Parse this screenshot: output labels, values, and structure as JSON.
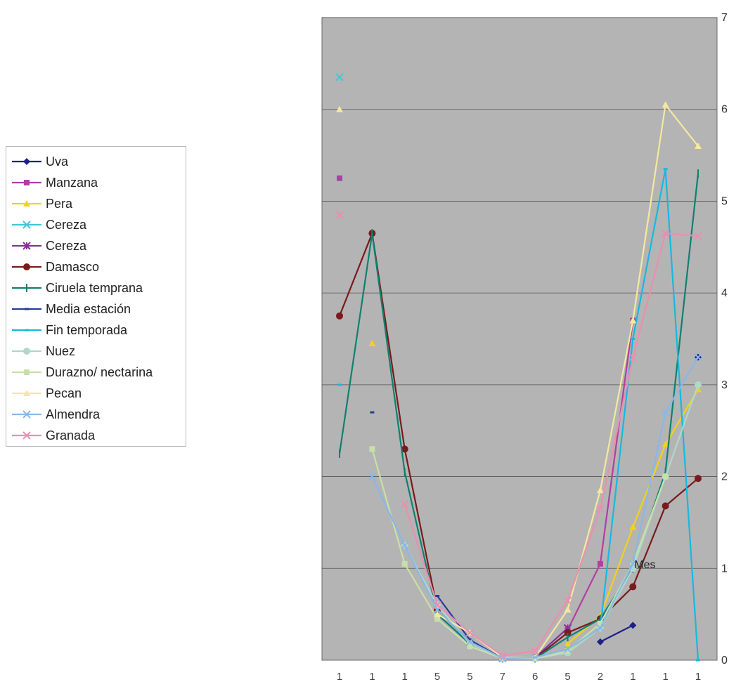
{
  "chart_data": {
    "type": "line",
    "title": "",
    "xlabel": "",
    "ylabel": "",
    "ylim": [
      0,
      7
    ],
    "y_ticks": [
      "0",
      "1",
      "2",
      "3",
      "4",
      "5",
      "6",
      "7"
    ],
    "x_ticks": [
      "1",
      "1",
      "1",
      "5",
      "5",
      "7",
      "6",
      "5",
      "2",
      "1",
      "1",
      "1"
    ],
    "grid": true,
    "plot_background": "#b4b4b4",
    "legend_position": "left",
    "annotations": [
      {
        "text": "Mes",
        "x": 9,
        "y": 1.05
      }
    ],
    "series": [
      {
        "name": "Uva",
        "color": "#1f1f8c",
        "marker": "diamond",
        "values": [
          null,
          null,
          null,
          null,
          null,
          null,
          null,
          null,
          0.2,
          0.38,
          null,
          3.3
        ]
      },
      {
        "name": "Manzana",
        "color": "#b040a0",
        "marker": "square",
        "values": [
          5.25,
          null,
          null,
          null,
          null,
          null,
          null,
          0.33,
          1.05,
          3.7,
          null,
          null
        ]
      },
      {
        "name": "Pera",
        "color": "#f2d21a",
        "marker": "triangle",
        "values": [
          null,
          3.45,
          null,
          null,
          null,
          null,
          null,
          0.18,
          0.48,
          1.45,
          2.35,
          2.95
        ]
      },
      {
        "name": "Cereza",
        "color": "#40c8d8",
        "marker": "x",
        "values": [
          6.35,
          null,
          null,
          null,
          null,
          null,
          null,
          null,
          null,
          null,
          null,
          null
        ]
      },
      {
        "name": "Cereza",
        "color": "#8a2f9a",
        "marker": "star",
        "values": [
          null,
          null,
          null,
          0.55,
          0.2,
          0.02,
          0.03,
          0.35,
          null,
          null,
          null,
          null
        ]
      },
      {
        "name": "Damasco",
        "color": "#7a1a1a",
        "marker": "circle",
        "values": [
          3.75,
          4.65,
          2.3,
          0.55,
          0.2,
          0.02,
          0.02,
          0.3,
          0.45,
          0.8,
          1.68,
          1.98
        ]
      },
      {
        "name": "Ciruela temprana",
        "color": "#108070",
        "marker": "plus",
        "values": [
          2.25,
          4.65,
          2.05,
          0.5,
          0.18,
          0.02,
          0.02,
          0.25,
          0.45,
          1.0,
          2.05,
          5.3
        ]
      },
      {
        "name": "Media estación",
        "color": "#2a3a9a",
        "marker": "dash",
        "values": [
          null,
          2.7,
          null,
          0.7,
          0.22,
          0.02,
          0.03,
          null,
          null,
          null,
          null,
          null
        ]
      },
      {
        "name": "Fin temporada",
        "color": "#18b8e0",
        "marker": "dash",
        "values": [
          3.0,
          null,
          null,
          null,
          null,
          null,
          null,
          null,
          0.35,
          3.5,
          5.35,
          0.0
        ]
      },
      {
        "name": "Nuez",
        "color": "#b0d8c8",
        "marker": "circle",
        "values": [
          null,
          null,
          1.25,
          0.6,
          0.18,
          0.02,
          0.02,
          0.08,
          0.35,
          1.0,
          2.0,
          3.0
        ]
      },
      {
        "name": "Durazno/ nectarina",
        "color": "#c8e0a8",
        "marker": "square",
        "values": [
          null,
          2.3,
          1.05,
          0.45,
          0.15,
          0.02,
          0.02,
          0.1,
          0.4,
          1.05,
          2.0,
          null
        ]
      },
      {
        "name": "Pecan",
        "color": "#f5e8a0",
        "marker": "triangle",
        "values": [
          6.0,
          null,
          null,
          0.5,
          0.3,
          0.03,
          0.03,
          0.55,
          1.85,
          3.7,
          6.05,
          5.6
        ]
      },
      {
        "name": "Almendra",
        "color": "#88b8e8",
        "marker": "x",
        "values": [
          null,
          2.0,
          1.25,
          0.55,
          0.2,
          0.02,
          0.03,
          0.12,
          0.35,
          1.05,
          2.7,
          3.3
        ]
      },
      {
        "name": "Granada",
        "color": "#e890b0",
        "marker": "x",
        "values": [
          4.85,
          null,
          1.7,
          0.6,
          0.3,
          0.05,
          0.1,
          0.65,
          1.65,
          3.3,
          4.65,
          4.62
        ]
      }
    ]
  }
}
